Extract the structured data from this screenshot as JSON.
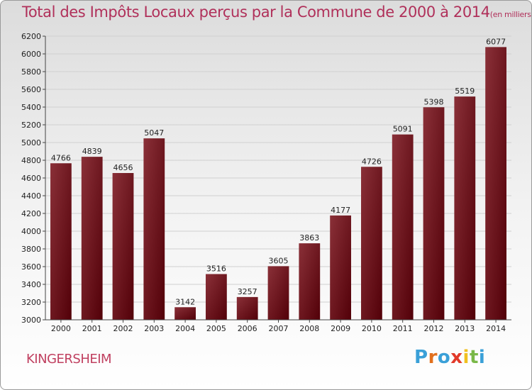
{
  "title": "Total des Impôts Locaux perçus par la Commune de 2000 à 2014",
  "title_unit": "(en milliers d'€)",
  "commune": "KINGERSHEIM",
  "logo": {
    "text": "Proxiti",
    "letter_colors": [
      "#3aa0d8",
      "#e2701e",
      "#3aa0d8",
      "#e23a2a",
      "#f0c020",
      "#7ab848",
      "#3aa0d8"
    ]
  },
  "colors": {
    "bar_light": "#8a3038",
    "bar_dark": "#520008",
    "grid": "#d0d0d0",
    "axis": "#444444"
  },
  "chart_data": {
    "type": "bar",
    "categories": [
      "2000",
      "2001",
      "2002",
      "2003",
      "2004",
      "2005",
      "2006",
      "2007",
      "2008",
      "2009",
      "2010",
      "2011",
      "2012",
      "2013",
      "2014"
    ],
    "values": [
      4766,
      4839,
      4656,
      5047,
      3142,
      3516,
      3257,
      3605,
      3863,
      4177,
      4726,
      5091,
      5398,
      5519,
      6077
    ],
    "ylim": [
      3000,
      6200
    ],
    "yticks": [
      3000,
      3200,
      3400,
      3600,
      3800,
      4000,
      4200,
      4400,
      4600,
      4800,
      5000,
      5200,
      5400,
      5600,
      5800,
      6000,
      6200
    ],
    "grid": true,
    "legend": "none",
    "data_labels": true
  }
}
